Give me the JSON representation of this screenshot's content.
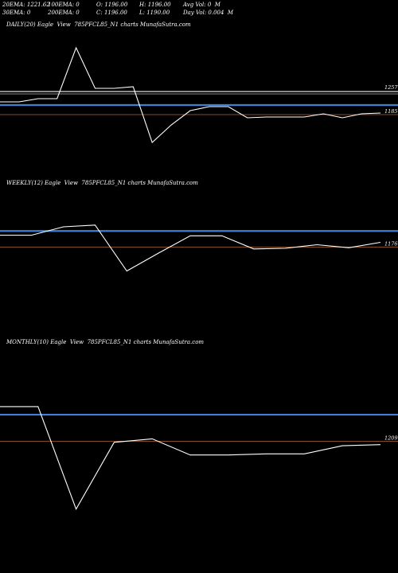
{
  "header": {
    "line1": [
      "20EMA: 1221.62",
      "100EMA: 0",
      "O: 1196.00",
      "H: 1196.00",
      "Avg Vol: 0  M"
    ],
    "line2": [
      "30EMA: 0",
      "200EMA: 0",
      "C: 1196.00",
      "L: 1190.00",
      "Day Vol: 0.004  M"
    ]
  },
  "colors": {
    "background": "#000000",
    "price_line": "#ffffff",
    "ema_line": "#3f7fd4",
    "level_line": "#b0683a",
    "gray_line": "#8c8c8c"
  },
  "chart_data": [
    {
      "type": "line",
      "title": "DAILY(20) Eagle  View  785PFCL85_N1 charts MunafaSutra.com",
      "y_label_text": "1257",
      "y_label_text2": "1185",
      "ylim": [
        1140,
        1320
      ],
      "x": [
        0,
        1,
        2,
        3,
        4,
        5,
        6,
        7,
        8,
        9,
        10,
        11,
        12,
        13,
        14,
        15,
        16,
        17,
        18,
        19,
        20
      ],
      "series": [
        {
          "values": [
            1232,
            1232,
            1236,
            1236,
            1300,
            1249,
            1249,
            1251,
            1181,
            1203,
            1221,
            1226,
            1226,
            1212,
            1213,
            1213,
            1213,
            1217,
            1212,
            1217,
            1218
          ]
        }
      ],
      "levels": {
        "gray": 1245,
        "blue": 1228,
        "orange": 1216
      }
    },
    {
      "type": "line",
      "title": "WEEKLY(12) Eagle  View  785PFCL85_N1 charts MunafaSutra.com",
      "y_label_text": "1176",
      "ylim": [
        1040,
        1280
      ],
      "x": [
        0,
        1,
        2,
        3,
        4,
        5,
        6,
        7,
        8,
        9,
        10,
        11,
        12
      ],
      "series": [
        {
          "values": [
            1206,
            1206,
            1220,
            1223,
            1146,
            1176,
            1205,
            1205,
            1183,
            1184,
            1190,
            1185,
            1194
          ]
        }
      ],
      "levels": {
        "blue": 1213,
        "orange": 1186
      }
    },
    {
      "type": "line",
      "title": "MONTHLY(10) Eagle  View  785PFCL85_N1 charts MunafaSutra.com",
      "y_label_text": "1209",
      "ylim": [
        1100,
        1290
      ],
      "x": [
        0,
        1,
        2,
        3,
        4,
        5,
        6,
        7,
        8,
        9,
        10
      ],
      "series": [
        {
          "values": [
            1241,
            1241,
            1152,
            1210,
            1213,
            1199,
            1199,
            1200,
            1200,
            1207,
            1208
          ]
        }
      ],
      "levels": {
        "blue": 1234,
        "orange": 1211
      }
    }
  ]
}
